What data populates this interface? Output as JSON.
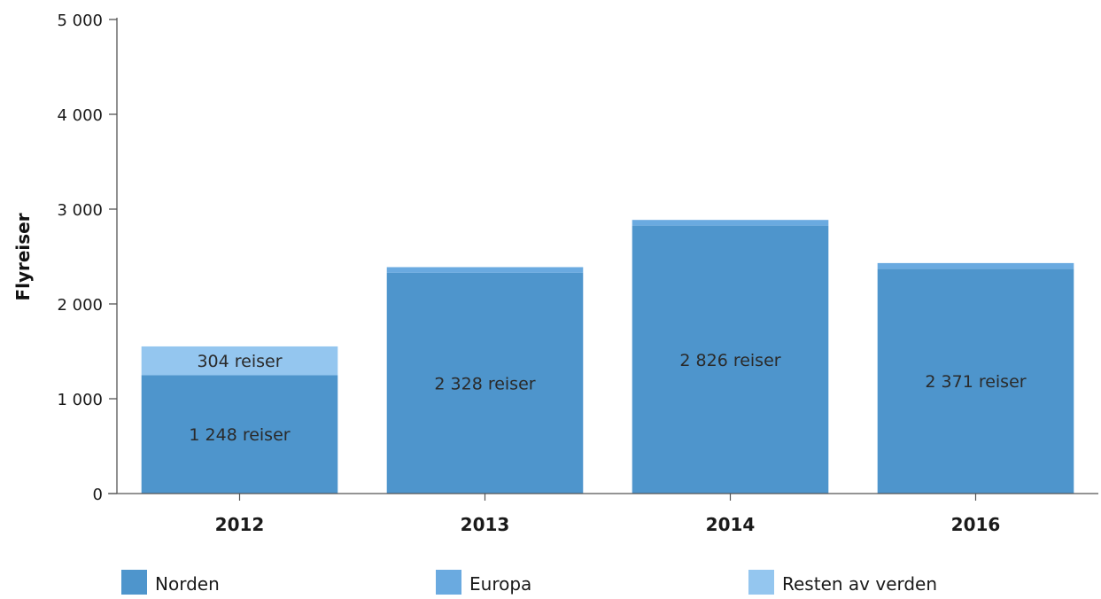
{
  "chart_data": {
    "type": "bar",
    "stacked": true,
    "categories": [
      "2012",
      "2013",
      "2014",
      "2016"
    ],
    "series": [
      {
        "name": "Norden",
        "values": [
          1248,
          2328,
          2826,
          2371
        ],
        "color": "#4e95cc",
        "labels": [
          "1 248 reiser",
          "2 328 reiser",
          "2 826 reiser",
          "2 371 reiser"
        ]
      },
      {
        "name": "Europa",
        "values": [
          0,
          60,
          60,
          60
        ],
        "color": "#6aaae0",
        "labels": [
          "",
          "",
          "",
          ""
        ]
      },
      {
        "name": "Resten av verden",
        "values": [
          304,
          0,
          0,
          0
        ],
        "color": "#94c6ef",
        "labels": [
          "304 reiser",
          "",
          "",
          ""
        ]
      }
    ],
    "title": "",
    "xlabel": "",
    "ylabel": "Flyreiser",
    "ylim": [
      0,
      5000
    ],
    "yticks": [
      0,
      1000,
      2000,
      3000,
      4000,
      5000
    ],
    "ytick_labels": [
      "0",
      "1 000",
      "2 000",
      "3 000",
      "4 000",
      "5 000"
    ],
    "grid": false,
    "legend_position": "bottom"
  }
}
